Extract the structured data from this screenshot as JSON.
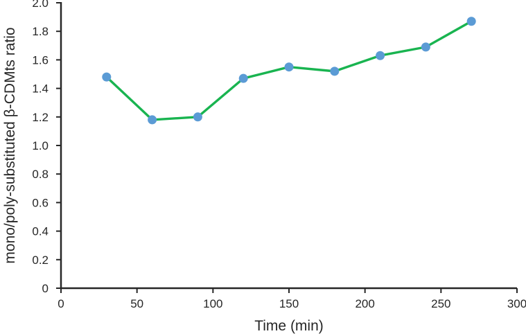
{
  "chart_data": {
    "type": "line",
    "title": "",
    "xlabel": "Time (min)",
    "ylabel": "mono/poly-substituted β-CDMts ratio",
    "x": [
      30,
      60,
      90,
      120,
      150,
      180,
      210,
      240,
      270
    ],
    "values": [
      1.48,
      1.18,
      1.2,
      1.47,
      1.55,
      1.52,
      1.63,
      1.69,
      1.87
    ],
    "xlim": [
      0,
      300
    ],
    "ylim": [
      0,
      2.0
    ],
    "x_tick_values": [
      0,
      50,
      100,
      150,
      200,
      250,
      300
    ],
    "x_tick_labels": [
      "0",
      "50",
      "100",
      "150",
      "200",
      "250",
      "300"
    ],
    "y_tick_values": [
      0,
      0.2,
      0.4,
      0.6,
      0.8,
      1.0,
      1.2,
      1.4,
      1.6,
      1.8,
      2.0
    ],
    "y_tick_labels": [
      "0",
      "0.2",
      "0.4",
      "0.6",
      "0.8",
      "1.0",
      "1.2",
      "1.4",
      "1.6",
      "1.8",
      "2.0"
    ],
    "grid": false,
    "legend_position": "none",
    "colors": {
      "line": "#19B450",
      "marker": "#5B9BD5",
      "axis": "#262626",
      "text": "#262626",
      "background": "#FFFFFF"
    }
  }
}
